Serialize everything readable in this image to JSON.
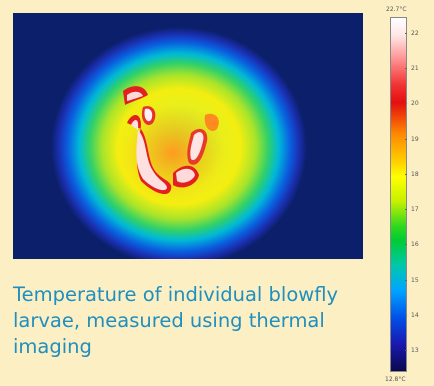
{
  "caption": "Temperature of individual blowfly larvae, measured using thermal imaging",
  "scale": {
    "max_label": "22.7°C",
    "min_label": "12.8°C",
    "ticks": [
      "22",
      "21",
      "20",
      "19",
      "18",
      "17",
      "16",
      "15",
      "14",
      "13"
    ]
  }
}
